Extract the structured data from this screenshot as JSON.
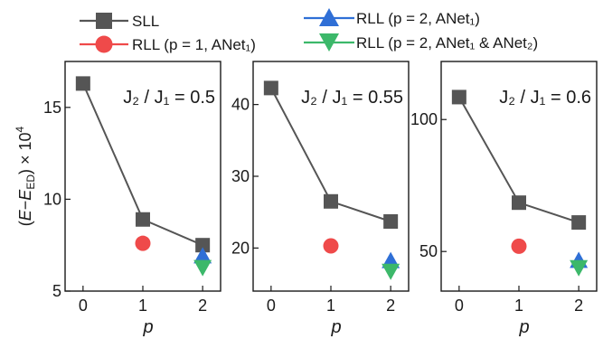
{
  "colors": {
    "sll": "#555555",
    "rll_p1": "#ef4a4a",
    "rll_p2_anet1": "#2f6fd6",
    "rll_p2_anet12": "#3cb86a"
  },
  "legend": {
    "sll": "SLL",
    "rll_p1": "RLL (p = 1, ANet₁)",
    "rll_p2_anet1": "RLL (p = 2, ANet₁)",
    "rll_p2_anet12": "RLL (p = 2, ANet₁ & ANet₂)"
  },
  "ylabel": "(E−E_ED) × 10⁴",
  "chart_data": [
    {
      "type": "scatter",
      "title": "J₂ / J₁ = 0.5",
      "xlabel": "p",
      "ylabel": "(E−E_ED) × 10⁴",
      "xlim": [
        -0.3,
        2.3
      ],
      "ylim": [
        5,
        17.5
      ],
      "xticks": [
        0,
        1,
        2
      ],
      "yticks": [
        5,
        10,
        15
      ],
      "series": [
        {
          "name": "SLL",
          "marker": "square",
          "line": true,
          "x": [
            0,
            1,
            2
          ],
          "y": [
            16.3,
            8.9,
            7.5
          ]
        },
        {
          "name": "RLL (p = 1, ANet₁)",
          "marker": "circle",
          "line": false,
          "x": [
            1
          ],
          "y": [
            7.6
          ]
        },
        {
          "name": "RLL (p = 2, ANet₁)",
          "marker": "triangle-up",
          "line": false,
          "x": [
            2
          ],
          "y": [
            6.9
          ]
        },
        {
          "name": "RLL (p = 2, ANet₁ & ANet₂)",
          "marker": "triangle-down",
          "line": false,
          "x": [
            2
          ],
          "y": [
            6.3
          ]
        }
      ]
    },
    {
      "type": "scatter",
      "title": "J₂ / J₁ = 0.55",
      "xlabel": "p",
      "ylabel": "",
      "xlim": [
        -0.3,
        2.3
      ],
      "ylim": [
        14,
        46
      ],
      "xticks": [
        0,
        1,
        2
      ],
      "yticks": [
        20,
        30,
        40
      ],
      "series": [
        {
          "name": "SLL",
          "marker": "square",
          "line": true,
          "x": [
            0,
            1,
            2
          ],
          "y": [
            42.3,
            26.5,
            23.7
          ]
        },
        {
          "name": "RLL (p = 1, ANet₁)",
          "marker": "circle",
          "line": false,
          "x": [
            1
          ],
          "y": [
            20.3
          ]
        },
        {
          "name": "RLL (p = 2, ANet₁)",
          "marker": "triangle-up",
          "line": false,
          "x": [
            2
          ],
          "y": [
            18.2
          ]
        },
        {
          "name": "RLL (p = 2, ANet₁ & ANet₂)",
          "marker": "triangle-down",
          "line": false,
          "x": [
            2
          ],
          "y": [
            16.8
          ]
        }
      ]
    },
    {
      "type": "scatter",
      "title": "J₂ / J₁ = 0.6",
      "xlabel": "p",
      "ylabel": "",
      "xlim": [
        -0.3,
        2.3
      ],
      "ylim": [
        35,
        122
      ],
      "xticks": [
        0,
        1,
        2
      ],
      "yticks": [
        50,
        100
      ],
      "series": [
        {
          "name": "SLL",
          "marker": "square",
          "line": true,
          "x": [
            0,
            1,
            2
          ],
          "y": [
            108.5,
            68.5,
            61.0
          ]
        },
        {
          "name": "RLL (p = 1, ANet₁)",
          "marker": "circle",
          "line": false,
          "x": [
            1
          ],
          "y": [
            52.0
          ]
        },
        {
          "name": "RLL (p = 2, ANet₁)",
          "marker": "triangle-up",
          "line": false,
          "x": [
            2
          ],
          "y": [
            46.5
          ]
        },
        {
          "name": "RLL (p = 2, ANet₁ & ANet₂)",
          "marker": "triangle-down",
          "line": false,
          "x": [
            2
          ],
          "y": [
            44.0
          ]
        }
      ]
    }
  ]
}
